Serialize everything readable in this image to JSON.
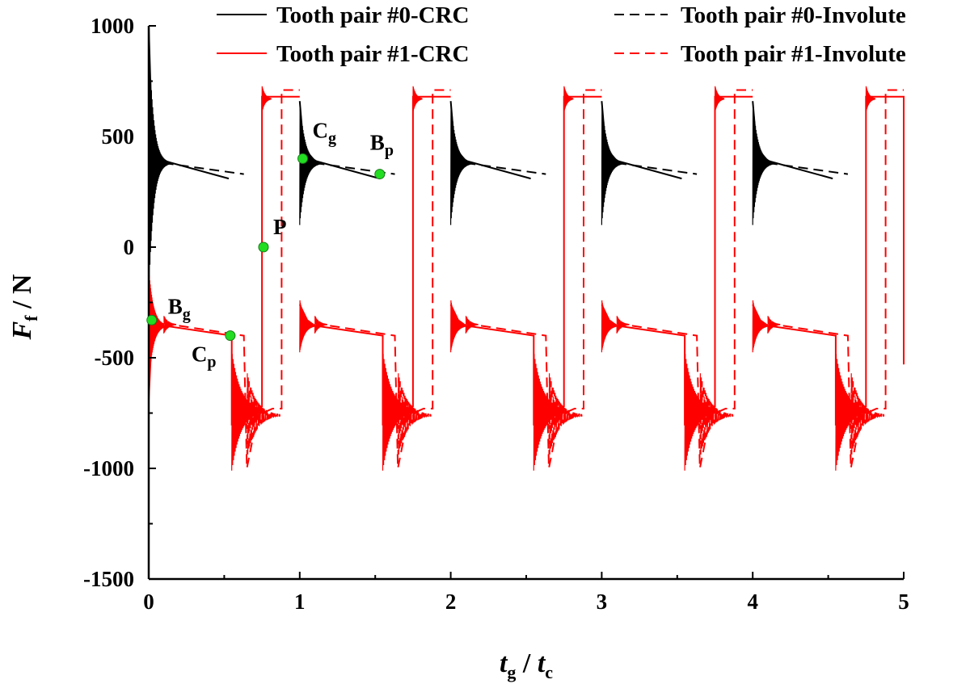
{
  "chart_data": {
    "type": "line",
    "xlabel": {
      "main": "t",
      "sub": "g",
      "sep": " / ",
      "main2": "t",
      "sub2": "c"
    },
    "ylabel": {
      "main": "F",
      "sub": "f",
      "rest": " / N"
    },
    "xlim": [
      0,
      5
    ],
    "ylim": [
      -1500,
      1000
    ],
    "xticks": [
      0,
      1,
      2,
      3,
      4,
      5
    ],
    "xtick_labels": [
      "0",
      "1",
      "2",
      "3",
      "4",
      "5"
    ],
    "yticks": [
      -1500,
      -1000,
      -500,
      0,
      500,
      1000
    ],
    "ytick_labels": [
      "-1500",
      "-1000",
      "-500",
      "0",
      "500",
      "1000"
    ],
    "grid": false,
    "legend_position": "top",
    "series": [
      {
        "name": "Tooth pair #0-CRC",
        "color": "#000000",
        "dash": "solid",
        "segments": [
          [
            [
              0.0,
              1000
            ],
            [
              0.02,
              540
            ],
            [
              0.05,
              430
            ],
            [
              0.1,
              390
            ],
            [
              0.53,
              310
            ]
          ],
          [
            [
              1.0,
              660
            ],
            [
              1.02,
              500
            ],
            [
              1.05,
              430
            ],
            [
              1.1,
              390
            ],
            [
              1.53,
              310
            ]
          ],
          [
            [
              2.0,
              660
            ],
            [
              2.02,
              500
            ],
            [
              2.05,
              430
            ],
            [
              2.1,
              390
            ],
            [
              2.53,
              310
            ]
          ],
          [
            [
              3.0,
              660
            ],
            [
              3.02,
              500
            ],
            [
              3.05,
              430
            ],
            [
              3.1,
              390
            ],
            [
              3.53,
              310
            ]
          ],
          [
            [
              4.0,
              660
            ],
            [
              4.02,
              500
            ],
            [
              4.05,
              430
            ],
            [
              4.1,
              390
            ],
            [
              4.53,
              310
            ]
          ]
        ]
      },
      {
        "name": "Tooth pair #1-CRC",
        "color": "#ff0000",
        "dash": "solid",
        "segments": [
          [
            [
              0.0,
              -690
            ],
            [
              0.02,
              -400
            ],
            [
              0.05,
              -350
            ],
            [
              0.1,
              -355
            ],
            [
              0.55,
              -400
            ],
            [
              0.55,
              -800
            ],
            [
              0.7,
              -740
            ],
            [
              0.75,
              -720
            ],
            [
              0.75,
              680
            ],
            [
              0.9,
              680
            ],
            [
              1.0,
              680
            ]
          ],
          [
            [
              1.0,
              -260
            ],
            [
              1.05,
              -330
            ],
            [
              1.1,
              -355
            ],
            [
              1.55,
              -400
            ],
            [
              1.55,
              -800
            ],
            [
              1.7,
              -740
            ],
            [
              1.75,
              -720
            ],
            [
              1.75,
              680
            ],
            [
              2.0,
              680
            ]
          ],
          [
            [
              2.0,
              -260
            ],
            [
              2.05,
              -330
            ],
            [
              2.1,
              -355
            ],
            [
              2.55,
              -400
            ],
            [
              2.55,
              -800
            ],
            [
              2.7,
              -740
            ],
            [
              2.75,
              -720
            ],
            [
              2.75,
              680
            ],
            [
              3.0,
              680
            ]
          ],
          [
            [
              3.0,
              -260
            ],
            [
              3.05,
              -330
            ],
            [
              3.1,
              -355
            ],
            [
              3.55,
              -400
            ],
            [
              3.55,
              -800
            ],
            [
              3.7,
              -740
            ],
            [
              3.75,
              -720
            ],
            [
              3.75,
              680
            ],
            [
              4.0,
              680
            ]
          ],
          [
            [
              4.0,
              -260
            ],
            [
              4.05,
              -330
            ],
            [
              4.1,
              -355
            ],
            [
              4.55,
              -400
            ],
            [
              4.55,
              -800
            ],
            [
              4.7,
              -740
            ],
            [
              4.75,
              -720
            ],
            [
              4.75,
              680
            ],
            [
              5.0,
              680
            ],
            [
              5.0,
              -530
            ]
          ]
        ]
      },
      {
        "name": "Tooth pair #0-Involute",
        "color": "#000000",
        "dash": "dashed",
        "segments": [
          [
            [
              0.1,
              380
            ],
            [
              0.63,
              330
            ]
          ],
          [
            [
              1.1,
              380
            ],
            [
              1.63,
              330
            ]
          ],
          [
            [
              2.1,
              380
            ],
            [
              2.63,
              330
            ]
          ],
          [
            [
              3.1,
              380
            ],
            [
              3.63,
              330
            ]
          ],
          [
            [
              4.1,
              380
            ],
            [
              4.63,
              330
            ]
          ]
        ]
      },
      {
        "name": "Tooth pair #1-Involute",
        "color": "#ff0000",
        "dash": "dashed",
        "segments": [
          [
            [
              0.1,
              -345
            ],
            [
              0.63,
              -400
            ],
            [
              0.65,
              -1000
            ],
            [
              0.72,
              -760
            ],
            [
              0.82,
              -730
            ],
            [
              0.88,
              -730
            ],
            [
              0.88,
              710
            ],
            [
              1.0,
              710
            ]
          ],
          [
            [
              1.1,
              -345
            ],
            [
              1.63,
              -400
            ],
            [
              1.65,
              -1000
            ],
            [
              1.72,
              -760
            ],
            [
              1.82,
              -730
            ],
            [
              1.88,
              -730
            ],
            [
              1.88,
              710
            ],
            [
              2.0,
              710
            ]
          ],
          [
            [
              2.1,
              -345
            ],
            [
              2.63,
              -400
            ],
            [
              2.65,
              -1000
            ],
            [
              2.72,
              -760
            ],
            [
              2.82,
              -730
            ],
            [
              2.88,
              -730
            ],
            [
              2.88,
              710
            ],
            [
              3.0,
              710
            ]
          ],
          [
            [
              3.1,
              -345
            ],
            [
              3.63,
              -400
            ],
            [
              3.65,
              -1000
            ],
            [
              3.72,
              -760
            ],
            [
              3.82,
              -730
            ],
            [
              3.88,
              -730
            ],
            [
              3.88,
              710
            ],
            [
              4.0,
              710
            ]
          ],
          [
            [
              4.1,
              -345
            ],
            [
              4.63,
              -400
            ],
            [
              4.65,
              -1000
            ],
            [
              4.72,
              -760
            ],
            [
              4.82,
              -730
            ],
            [
              4.88,
              -730
            ],
            [
              4.88,
              710
            ],
            [
              5.0,
              710
            ]
          ]
        ]
      }
    ],
    "oscillations": [
      {
        "series": 0,
        "x0": 0.0,
        "y_center": 380,
        "amp": 600,
        "decay": 0.03,
        "span": 0.14
      },
      {
        "series": 0,
        "x0": 1.0,
        "y_center": 380,
        "amp": 280,
        "decay": 0.035,
        "span": 0.14
      },
      {
        "series": 0,
        "x0": 2.0,
        "y_center": 380,
        "amp": 280,
        "decay": 0.035,
        "span": 0.14
      },
      {
        "series": 0,
        "x0": 3.0,
        "y_center": 380,
        "amp": 280,
        "decay": 0.035,
        "span": 0.14
      },
      {
        "series": 0,
        "x0": 4.0,
        "y_center": 380,
        "amp": 280,
        "decay": 0.035,
        "span": 0.14
      },
      {
        "series": 1,
        "x0": 0.0,
        "y_center": -355,
        "amp": 260,
        "decay": 0.03,
        "span": 0.1
      },
      {
        "series": 1,
        "x0": 1.0,
        "y_center": -355,
        "amp": 120,
        "decay": 0.03,
        "span": 0.1
      },
      {
        "series": 1,
        "x0": 2.0,
        "y_center": -355,
        "amp": 120,
        "decay": 0.03,
        "span": 0.1
      },
      {
        "series": 1,
        "x0": 3.0,
        "y_center": -355,
        "amp": 120,
        "decay": 0.03,
        "span": 0.1
      },
      {
        "series": 1,
        "x0": 4.0,
        "y_center": -355,
        "amp": 120,
        "decay": 0.03,
        "span": 0.1
      },
      {
        "series": 1,
        "x0": 0.55,
        "y_center": -740,
        "amp": 270,
        "decay": 0.06,
        "span": 0.2
      },
      {
        "series": 1,
        "x0": 1.55,
        "y_center": -740,
        "amp": 270,
        "decay": 0.06,
        "span": 0.2
      },
      {
        "series": 1,
        "x0": 2.55,
        "y_center": -740,
        "amp": 270,
        "decay": 0.06,
        "span": 0.2
      },
      {
        "series": 1,
        "x0": 3.55,
        "y_center": -740,
        "amp": 270,
        "decay": 0.06,
        "span": 0.2
      },
      {
        "series": 1,
        "x0": 4.55,
        "y_center": -740,
        "amp": 270,
        "decay": 0.06,
        "span": 0.2
      },
      {
        "series": 1,
        "x0": 0.75,
        "y_center": 670,
        "amp": 60,
        "decay": 0.02,
        "span": 0.06
      },
      {
        "series": 1,
        "x0": 1.75,
        "y_center": 670,
        "amp": 60,
        "decay": 0.02,
        "span": 0.06
      },
      {
        "series": 1,
        "x0": 2.75,
        "y_center": 670,
        "amp": 60,
        "decay": 0.02,
        "span": 0.06
      },
      {
        "series": 1,
        "x0": 3.75,
        "y_center": 670,
        "amp": 60,
        "decay": 0.02,
        "span": 0.06
      },
      {
        "series": 1,
        "x0": 4.75,
        "y_center": 670,
        "amp": 60,
        "decay": 0.02,
        "span": 0.06
      },
      {
        "series": 3,
        "x0": 0.65,
        "y_center": -760,
        "amp": 200,
        "decay": 0.06,
        "span": 0.22
      },
      {
        "series": 3,
        "x0": 1.65,
        "y_center": -760,
        "amp": 200,
        "decay": 0.06,
        "span": 0.22
      },
      {
        "series": 3,
        "x0": 2.65,
        "y_center": -760,
        "amp": 200,
        "decay": 0.06,
        "span": 0.22
      },
      {
        "series": 3,
        "x0": 3.65,
        "y_center": -760,
        "amp": 200,
        "decay": 0.06,
        "span": 0.22
      },
      {
        "series": 3,
        "x0": 4.65,
        "y_center": -760,
        "amp": 200,
        "decay": 0.06,
        "span": 0.22
      },
      {
        "series": 3,
        "x0": 0.1,
        "y_center": -350,
        "amp": 40,
        "decay": 0.03,
        "span": 0.08
      },
      {
        "series": 3,
        "x0": 1.1,
        "y_center": -350,
        "amp": 40,
        "decay": 0.03,
        "span": 0.08
      },
      {
        "series": 3,
        "x0": 2.1,
        "y_center": -350,
        "amp": 40,
        "decay": 0.03,
        "span": 0.08
      },
      {
        "series": 3,
        "x0": 3.1,
        "y_center": -350,
        "amp": 40,
        "decay": 0.03,
        "span": 0.08
      },
      {
        "series": 3,
        "x0": 4.1,
        "y_center": -350,
        "amp": 40,
        "decay": 0.03,
        "span": 0.08
      }
    ],
    "annotations": [
      {
        "main": "B",
        "sub": "g",
        "x": 0.02,
        "y": -330,
        "color": "#22dd22"
      },
      {
        "main": "C",
        "sub": "p",
        "x": 0.54,
        "y": -400,
        "color": "#22dd22"
      },
      {
        "main": "P",
        "sub": "",
        "x": 0.76,
        "y": 0,
        "color": "#22dd22"
      },
      {
        "main": "C",
        "sub": "g",
        "x": 1.02,
        "y": 400,
        "color": "#22dd22"
      },
      {
        "main": "B",
        "sub": "p",
        "x": 1.53,
        "y": 330,
        "color": "#22dd22"
      }
    ]
  }
}
